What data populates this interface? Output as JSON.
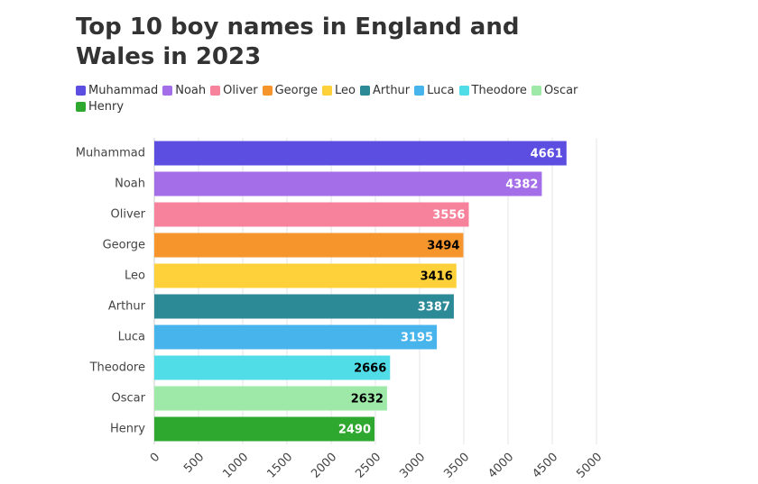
{
  "chart_data": {
    "type": "bar",
    "orientation": "horizontal",
    "title": "Top 10 boy names in England and Wales in 2023",
    "categories": [
      "Muhammad",
      "Noah",
      "Oliver",
      "George",
      "Leo",
      "Arthur",
      "Luca",
      "Theodore",
      "Oscar",
      "Henry"
    ],
    "values": [
      4661,
      4382,
      3556,
      3494,
      3416,
      3387,
      3195,
      2666,
      2632,
      2490
    ],
    "colors": [
      "#5b4ee0",
      "#a46ee8",
      "#f7829b",
      "#f6952c",
      "#fed13a",
      "#2b8a96",
      "#48b4ec",
      "#50dde8",
      "#9fe9a8",
      "#2fa82f"
    ],
    "label_colors": [
      "#ffffff",
      "#ffffff",
      "#ffffff",
      "#000000",
      "#000000",
      "#ffffff",
      "#ffffff",
      "#000000",
      "#000000",
      "#ffffff"
    ],
    "xlim": [
      0,
      5000
    ],
    "xticks": [
      0,
      500,
      1000,
      1500,
      2000,
      2500,
      3000,
      3500,
      4000,
      4500,
      5000
    ],
    "grid": true,
    "legend": "top"
  }
}
